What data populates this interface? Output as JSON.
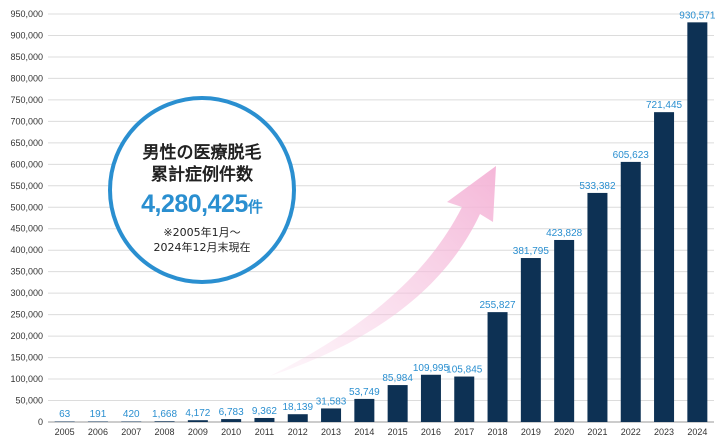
{
  "chart_data": {
    "type": "bar",
    "categories": [
      "2005",
      "2006",
      "2007",
      "2008",
      "2009",
      "2010",
      "2011",
      "2012",
      "2013",
      "2014",
      "2015",
      "2016",
      "2017",
      "2018",
      "2019",
      "2020",
      "2021",
      "2022",
      "2023",
      "2024"
    ],
    "values": [
      63,
      191,
      420,
      1668,
      4172,
      6783,
      9362,
      18139,
      31583,
      53749,
      85984,
      109995,
      105845,
      255827,
      381795,
      423828,
      533382,
      605623,
      721445,
      930571
    ],
    "value_labels": [
      "63",
      "191",
      "420",
      "1,668",
      "4,172",
      "6,783",
      "9,362",
      "18,139",
      "31,583",
      "53,749",
      "85,984",
      "109,995",
      "105,845",
      "255,827",
      "381,795",
      "423,828",
      "533,382",
      "605,623",
      "721,445",
      "930,571"
    ],
    "ylim": [
      0,
      950000
    ],
    "yticks": [
      0,
      50000,
      100000,
      150000,
      200000,
      250000,
      300000,
      350000,
      400000,
      450000,
      500000,
      550000,
      600000,
      650000,
      700000,
      750000,
      800000,
      850000,
      900000,
      950000
    ],
    "ytick_labels": [
      "0",
      "50,000",
      "100,000",
      "150,000",
      "200,000",
      "250,000",
      "300,000",
      "350,000",
      "400,000",
      "450,000",
      "500,000",
      "550,000",
      "600,000",
      "650,000",
      "700,000",
      "750,000",
      "800,000",
      "850,000",
      "900,000",
      "950,000"
    ],
    "grid": true,
    "bar_color": "#0d3154",
    "label_color": "#2a8fd0"
  },
  "callout": {
    "line1": "男性の医療脱毛",
    "line2": "累計症例件数",
    "total": "4,280,425",
    "unit": "件",
    "note_line1": "※2005年1月～",
    "note_line2": "2024年12月末現在",
    "accent_color": "#2a8fd0",
    "arrow_color": "#f6c6e1"
  }
}
